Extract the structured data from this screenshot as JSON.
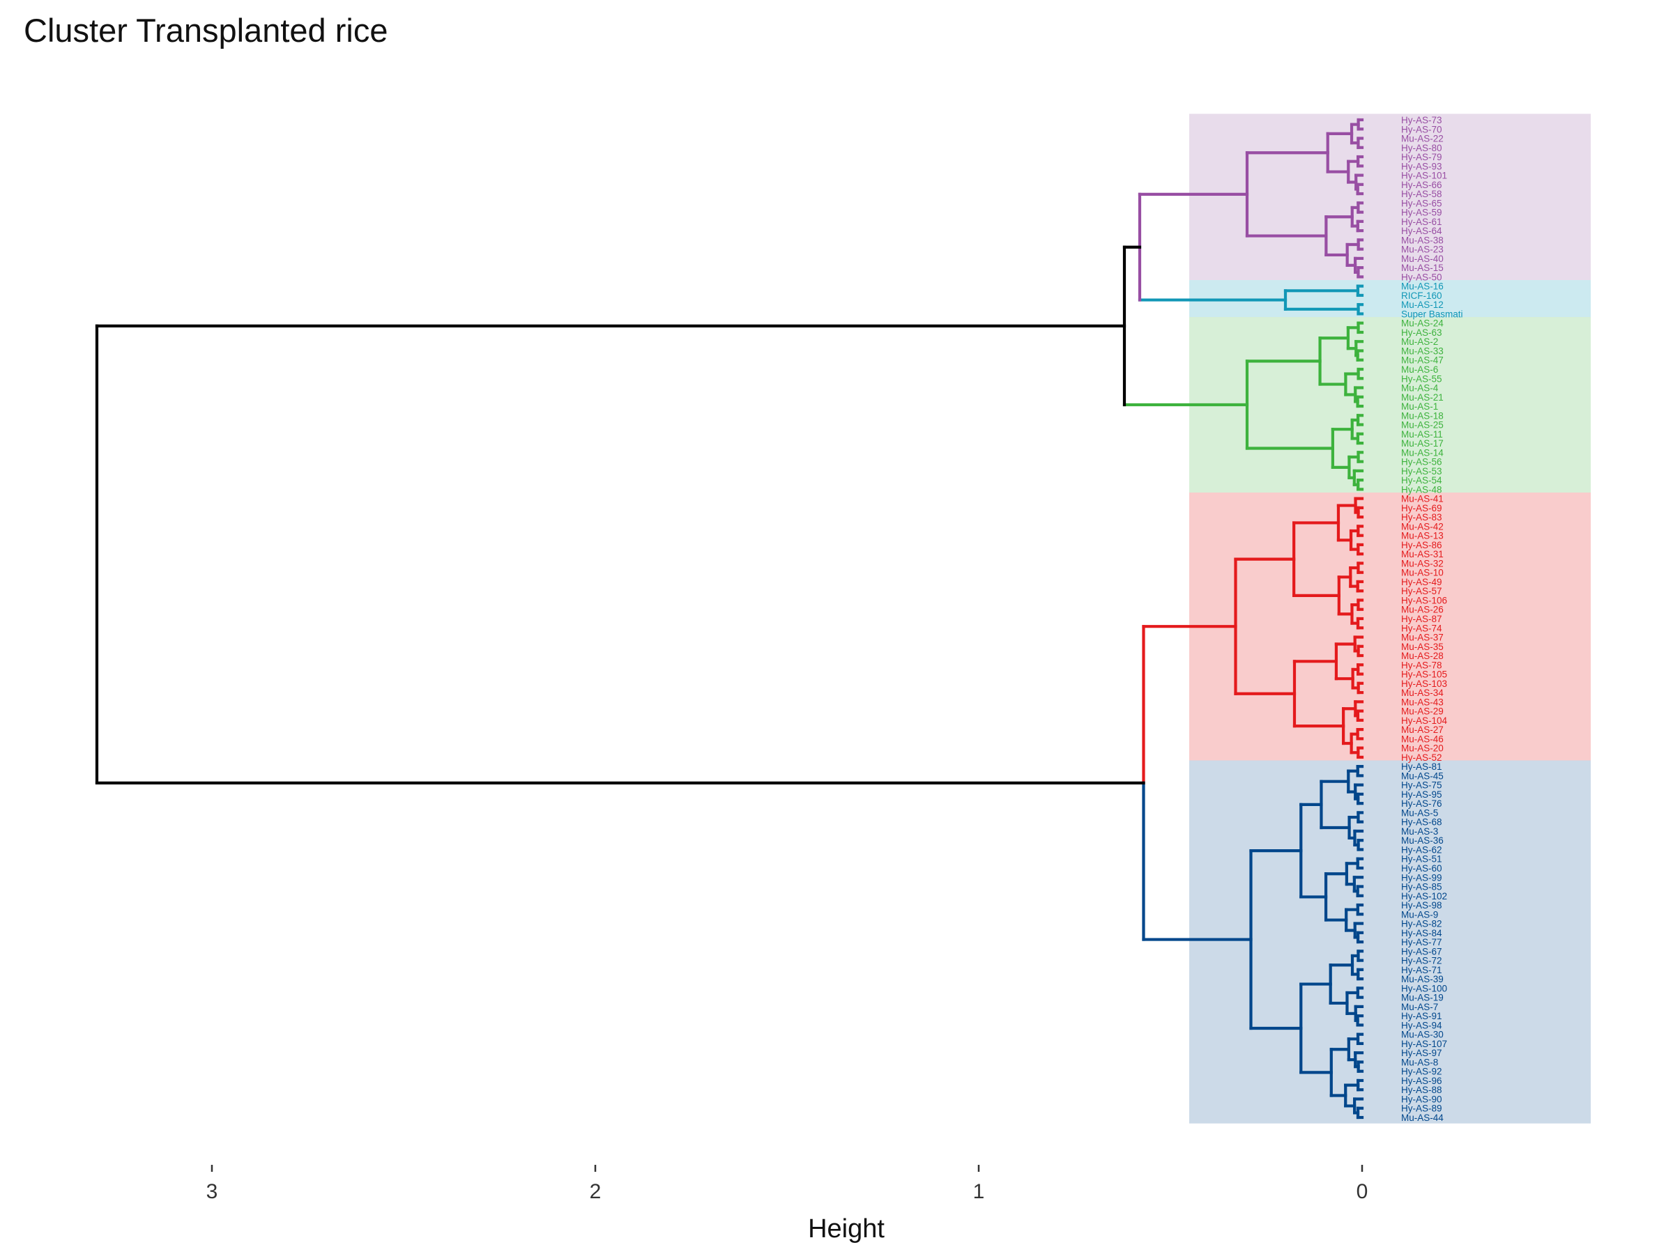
{
  "chart_data": {
    "type": "dendrogram",
    "title": "Cluster Transplanted rice",
    "xlabel": "Height",
    "x_ticks": [
      3,
      2,
      1,
      0
    ],
    "xlim": [
      3.3,
      -0.6
    ],
    "grid": false,
    "clusters": [
      {
        "color": "#984EA3",
        "fill": "#E8DCEB",
        "leaves": [
          "Hy-AS-73",
          "Hy-AS-70",
          "Mu-AS-22",
          "Hy-AS-80",
          "Hy-AS-79",
          "Hy-AS-93",
          "Hy-AS-101",
          "Hy-AS-66",
          "Hy-AS-58",
          "Hy-AS-65",
          "Hy-AS-59",
          "Hy-AS-61",
          "Hy-AS-64",
          "Mu-AS-38",
          "Mu-AS-23",
          "Mu-AS-40",
          "Mu-AS-15",
          "Hy-AS-50"
        ]
      },
      {
        "color": "#1197B6",
        "fill": "#CCEAF0",
        "leaves": [
          "Mu-AS-16",
          "RICF-160",
          "Mu-AS-12",
          "Super Basmati"
        ]
      },
      {
        "color": "#3DB23D",
        "fill": "#D7EFD7",
        "leaves": [
          "Mu-AS-24",
          "Hy-AS-63",
          "Mu-AS-2",
          "Mu-AS-33",
          "Mu-AS-47",
          "Mu-AS-6",
          "Hy-AS-55",
          "Mu-AS-4",
          "Mu-AS-21",
          "Mu-AS-1",
          "Mu-AS-18",
          "Mu-AS-25",
          "Mu-AS-11",
          "Mu-AS-17",
          "Mu-AS-14",
          "Hy-AS-56",
          "Hy-AS-53",
          "Hy-AS-54",
          "Hy-AS-48"
        ]
      },
      {
        "color": "#E41A1C",
        "fill": "#F9CCCC",
        "leaves": [
          "Mu-AS-41",
          "Hy-AS-69",
          "Hy-AS-83",
          "Mu-AS-42",
          "Mu-AS-13",
          "Hy-AS-86",
          "Mu-AS-31",
          "Mu-AS-32",
          "Mu-AS-10",
          "Hy-AS-49",
          "Hy-AS-57",
          "Hy-AS-106",
          "Mu-AS-26",
          "Hy-AS-87",
          "Hy-AS-74",
          "Mu-AS-37",
          "Mu-AS-35",
          "Mu-AS-28",
          "Hy-AS-78",
          "Hy-AS-105",
          "Hy-AS-103",
          "Mu-AS-34",
          "Mu-AS-43",
          "Mu-AS-29",
          "Hy-AS-104",
          "Mu-AS-27",
          "Mu-AS-46",
          "Mu-AS-20",
          "Hy-AS-52"
        ]
      },
      {
        "color": "#00468B",
        "fill": "#CCDAE8",
        "leaves": [
          "Hy-AS-81",
          "Mu-AS-45",
          "Hy-AS-75",
          "Hy-AS-95",
          "Hy-AS-76",
          "Mu-AS-5",
          "Hy-AS-68",
          "Mu-AS-3",
          "Mu-AS-36",
          "Hy-AS-62",
          "Hy-AS-51",
          "Hy-AS-60",
          "Hy-AS-99",
          "Hy-AS-85",
          "Hy-AS-102",
          "Hy-AS-98",
          "Mu-AS-9",
          "Hy-AS-82",
          "Hy-AS-84",
          "Hy-AS-77",
          "Hy-AS-67",
          "Hy-AS-72",
          "Hy-AS-71",
          "Mu-AS-39",
          "Hy-AS-100",
          "Mu-AS-19",
          "Mu-AS-7",
          "Hy-AS-91",
          "Hy-AS-94",
          "Mu-AS-30",
          "Hy-AS-107",
          "Hy-AS-97",
          "Mu-AS-8",
          "Hy-AS-92",
          "Hy-AS-96",
          "Hy-AS-88",
          "Hy-AS-90",
          "Hy-AS-89",
          "Mu-AS-44"
        ]
      }
    ],
    "merges": {
      "purple_cyan": 0.58,
      "top_group": 0.62,
      "red_blue": 0.57,
      "root": 3.3
    }
  }
}
